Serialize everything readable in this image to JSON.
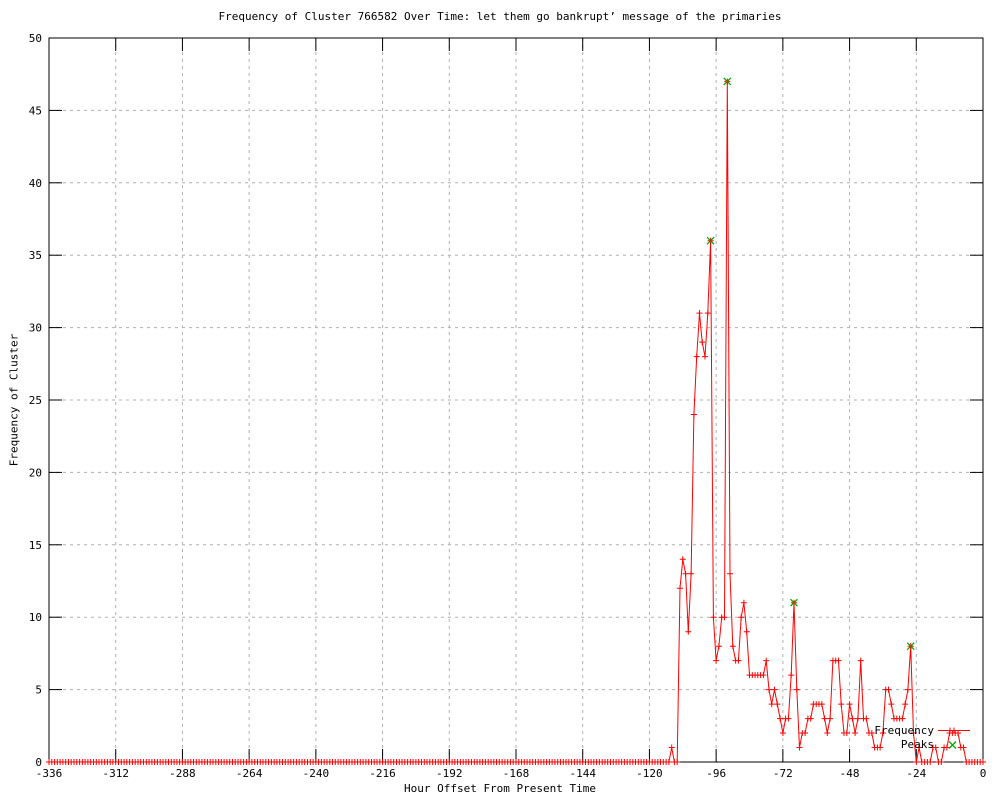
{
  "figure": {
    "title": "Frequency of Cluster 766582 Over Time: let them go bankrupt’ message of the primaries",
    "x_axis": {
      "label": "Hour Offset From Present Time"
    },
    "y_axis": {
      "label": "Frequency of Cluster"
    },
    "legend": [
      {
        "label": "Frequency",
        "marker": "plus-line",
        "color": "#ff0000"
      },
      {
        "label": "Peaks",
        "marker": "cross",
        "color": "#00aa00"
      }
    ]
  },
  "chart_data": {
    "type": "line",
    "title": "Frequency of Cluster 766582 Over Time: let them go bankrupt’ message of the primaries",
    "xlabel": "Hour Offset From Present Time",
    "ylabel": "Frequency of Cluster",
    "xlim": [
      -336,
      0
    ],
    "ylim": [
      0,
      50
    ],
    "xticks": [
      -336,
      -312,
      -288,
      -264,
      -240,
      -216,
      -192,
      -168,
      -144,
      -120,
      -96,
      -72,
      -48,
      -24,
      0
    ],
    "yticks": [
      0,
      5,
      10,
      15,
      20,
      25,
      30,
      35,
      40,
      45,
      50
    ],
    "grid": true,
    "legend_position": "inside-right-bottom",
    "colors": {
      "frequency_line": "#ff0000",
      "peaks_marker": "#00aa00",
      "peak_center": "#806000",
      "grid": "#b0b0b0",
      "axis": "#000000",
      "text": "#000000"
    },
    "series": [
      {
        "name": "Frequency",
        "style": "linespoints",
        "marker": "plus",
        "color": "#ff0000",
        "x_start": -336,
        "x_end": 0,
        "x_step": 1,
        "baseline_value": 0,
        "burst_start": -112,
        "burst_values": [
          1,
          0,
          0,
          12,
          14,
          13,
          9,
          13,
          24,
          28,
          31,
          29,
          28,
          31,
          36,
          10,
          7,
          8,
          10,
          10,
          47,
          13,
          8,
          7,
          7,
          10,
          11,
          9,
          6,
          6,
          6,
          6,
          6,
          6,
          7,
          5,
          4,
          5,
          4,
          3,
          2,
          3,
          3,
          6,
          11,
          5,
          1,
          2,
          2,
          3,
          3,
          4,
          4,
          4,
          4,
          3,
          2,
          3,
          7,
          7,
          7,
          4,
          2,
          2,
          4,
          3,
          2,
          3,
          7,
          3,
          3,
          2,
          2,
          1,
          1,
          1,
          2,
          5,
          5,
          4,
          3,
          3,
          3,
          3,
          4,
          5,
          8,
          2,
          0,
          1,
          0,
          0,
          0,
          0,
          1,
          1,
          0,
          0,
          1,
          1,
          2,
          2,
          2,
          2,
          1,
          1,
          0,
          0,
          0,
          0,
          0,
          0,
          0
        ]
      },
      {
        "name": "Peaks",
        "style": "points",
        "marker": "cross",
        "color": "#00aa00",
        "points": [
          [
            -98,
            36
          ],
          [
            -92,
            47
          ],
          [
            -68,
            11
          ],
          [
            -26,
            8
          ]
        ]
      }
    ]
  }
}
